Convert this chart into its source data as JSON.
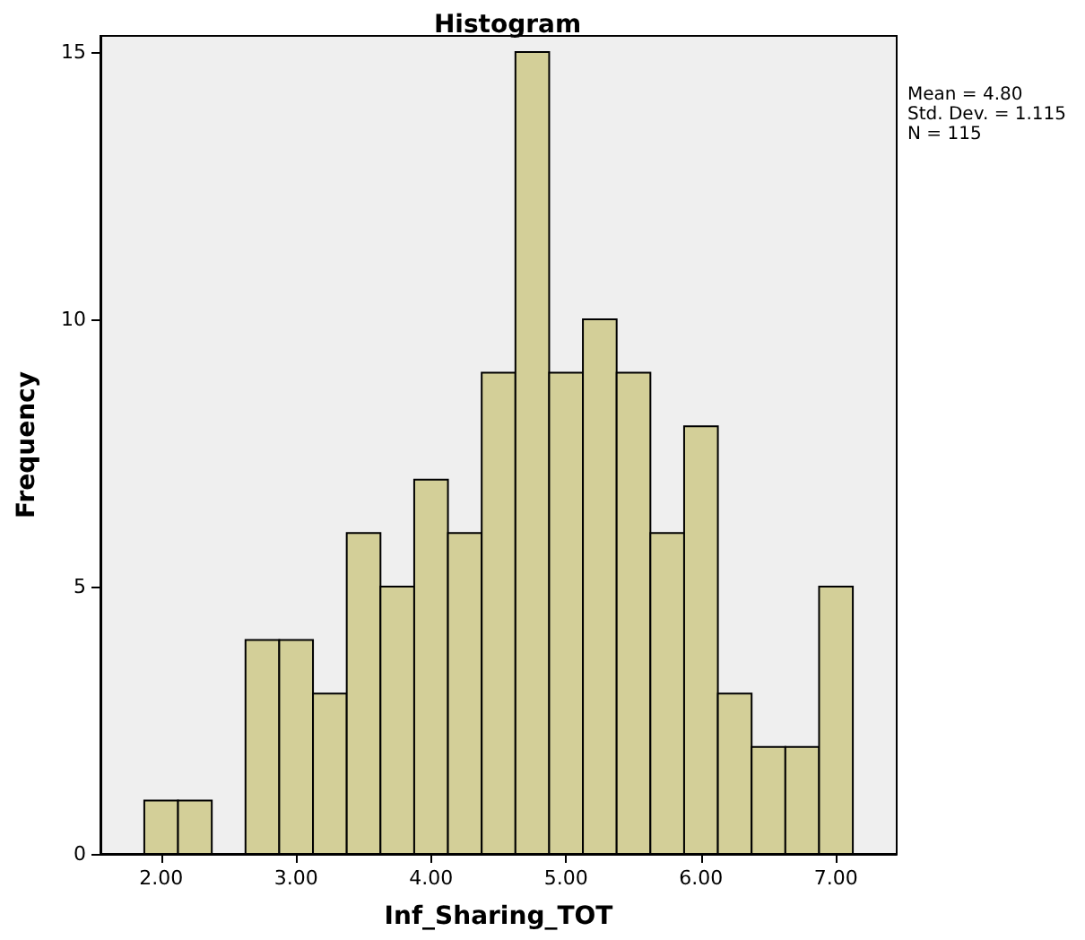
{
  "chart_data": {
    "type": "histogram",
    "title": "Histogram",
    "xlabel": "Inf_Sharing_TOT",
    "ylabel": "Frequency",
    "bins": [
      1.875,
      2.125,
      2.375,
      2.625,
      2.875,
      3.125,
      3.375,
      3.625,
      3.875,
      4.125,
      4.375,
      4.625,
      4.875,
      5.125,
      5.375,
      5.625,
      5.875,
      6.125,
      6.375,
      6.625,
      6.875,
      7.125
    ],
    "values": [
      1,
      1,
      0,
      4,
      4,
      3,
      6,
      5,
      7,
      6,
      9,
      15,
      9,
      10,
      9,
      6,
      8,
      3,
      2,
      2,
      5
    ],
    "color": "#d3cf98",
    "xlim": [
      1.55,
      7.45
    ],
    "xticks": [
      {
        "value": 2,
        "label": "2.00"
      },
      {
        "value": 3,
        "label": "3.00"
      },
      {
        "value": 4,
        "label": "4.00"
      },
      {
        "value": 5,
        "label": "5.00"
      },
      {
        "value": 6,
        "label": "6.00"
      },
      {
        "value": 7,
        "label": "7.00"
      }
    ],
    "ylim": [
      0,
      15.3
    ],
    "yticks": [
      0,
      5,
      10,
      15
    ],
    "grid": false,
    "annotations": [
      "Mean = 4.80",
      "Std. Dev. = 1.115",
      "N = 115"
    ]
  }
}
